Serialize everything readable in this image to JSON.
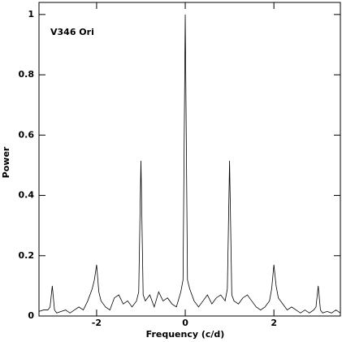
{
  "chart_data": {
    "type": "line",
    "annotation": "V346 Ori",
    "xlabel": "Frequency (c/d)",
    "ylabel": "Power",
    "xlim": [
      -3.3,
      3.5
    ],
    "ylim": [
      0,
      1.04
    ],
    "xticks": [
      -2,
      0,
      2
    ],
    "yticks": [
      0,
      0.2,
      0.4,
      0.6,
      0.8,
      1
    ],
    "x": [
      -3.3,
      -3.2,
      -3.1,
      -3.05,
      -3.0,
      -2.95,
      -2.9,
      -2.8,
      -2.7,
      -2.6,
      -2.5,
      -2.4,
      -2.3,
      -2.2,
      -2.1,
      -2.05,
      -2.0,
      -1.95,
      -1.9,
      -1.8,
      -1.7,
      -1.6,
      -1.5,
      -1.4,
      -1.3,
      -1.2,
      -1.1,
      -1.05,
      -1.0,
      -0.95,
      -0.9,
      -0.8,
      -0.7,
      -0.6,
      -0.5,
      -0.4,
      -0.3,
      -0.2,
      -0.1,
      -0.05,
      0,
      0.05,
      0.1,
      0.2,
      0.3,
      0.4,
      0.5,
      0.6,
      0.7,
      0.8,
      0.9,
      0.95,
      1.0,
      1.05,
      1.1,
      1.2,
      1.3,
      1.4,
      1.5,
      1.6,
      1.7,
      1.8,
      1.9,
      1.95,
      2.0,
      2.05,
      2.1,
      2.2,
      2.3,
      2.4,
      2.5,
      2.6,
      2.7,
      2.8,
      2.9,
      2.95,
      3.0,
      3.05,
      3.1,
      3.2,
      3.3,
      3.4,
      3.5
    ],
    "series": [
      {
        "color": "#000000",
        "values": [
          0.015,
          0.02,
          0.02,
          0.03,
          0.1,
          0.02,
          0.01,
          0.015,
          0.02,
          0.01,
          0.02,
          0.03,
          0.02,
          0.05,
          0.09,
          0.12,
          0.17,
          0.08,
          0.05,
          0.03,
          0.02,
          0.06,
          0.07,
          0.04,
          0.05,
          0.03,
          0.05,
          0.08,
          0.515,
          0.07,
          0.05,
          0.07,
          0.03,
          0.08,
          0.05,
          0.06,
          0.04,
          0.03,
          0.08,
          0.12,
          1.0,
          0.12,
          0.09,
          0.05,
          0.03,
          0.05,
          0.07,
          0.04,
          0.06,
          0.07,
          0.05,
          0.09,
          0.515,
          0.07,
          0.05,
          0.04,
          0.06,
          0.07,
          0.05,
          0.03,
          0.02,
          0.03,
          0.05,
          0.09,
          0.17,
          0.1,
          0.06,
          0.04,
          0.02,
          0.03,
          0.02,
          0.01,
          0.02,
          0.01,
          0.02,
          0.03,
          0.1,
          0.02,
          0.01,
          0.015,
          0.01,
          0.02,
          0.01
        ]
      }
    ]
  }
}
